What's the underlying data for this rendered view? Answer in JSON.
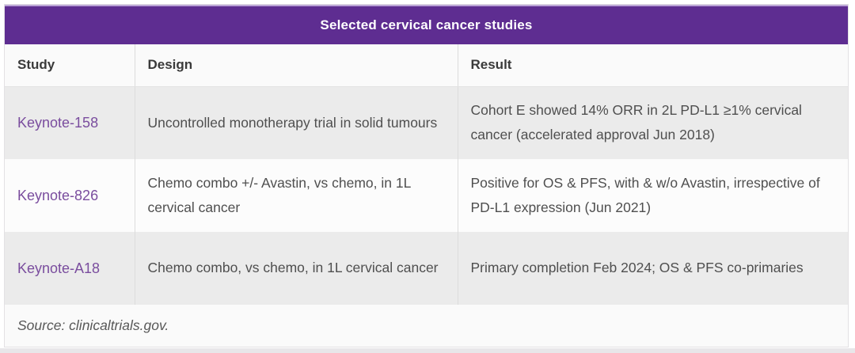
{
  "colors": {
    "header_purple": "#5E2D91",
    "header_top_edge": "#BBA3D6",
    "study_text_purple": "#7A4D9E",
    "row_gray": "#EBEBEB",
    "row_white": "#FCFCFC",
    "body_text": "#4F4F4F"
  },
  "chart_data": {
    "type": "table",
    "title": "Selected cervical cancer studies",
    "columns": [
      "Study",
      "Design",
      "Result"
    ],
    "rows": [
      {
        "study": "Keynote-158",
        "design": "Uncontrolled monotherapy trial in solid tumours",
        "result": "Cohort E showed 14% ORR in 2L PD-L1 ≥1% cervical cancer (accelerated approval Jun 2018)"
      },
      {
        "study": "Keynote-826",
        "design": "Chemo combo +/- Avastin, vs chemo, in 1L cervical cancer",
        "result": "Positive for OS & PFS, with & w/o Avastin, irrespective of PD-L1 expression (Jun 2021)"
      },
      {
        "study": "Keynote-A18",
        "design": "Chemo combo, vs chemo, in 1L cervical cancer",
        "result": "Primary completion Feb 2024; OS & PFS co-primaries"
      }
    ],
    "source": "Source: clinicaltrials.gov.",
    "layout": {
      "title_position": "top-center",
      "striped_rows": true,
      "column_dividers": true
    }
  }
}
